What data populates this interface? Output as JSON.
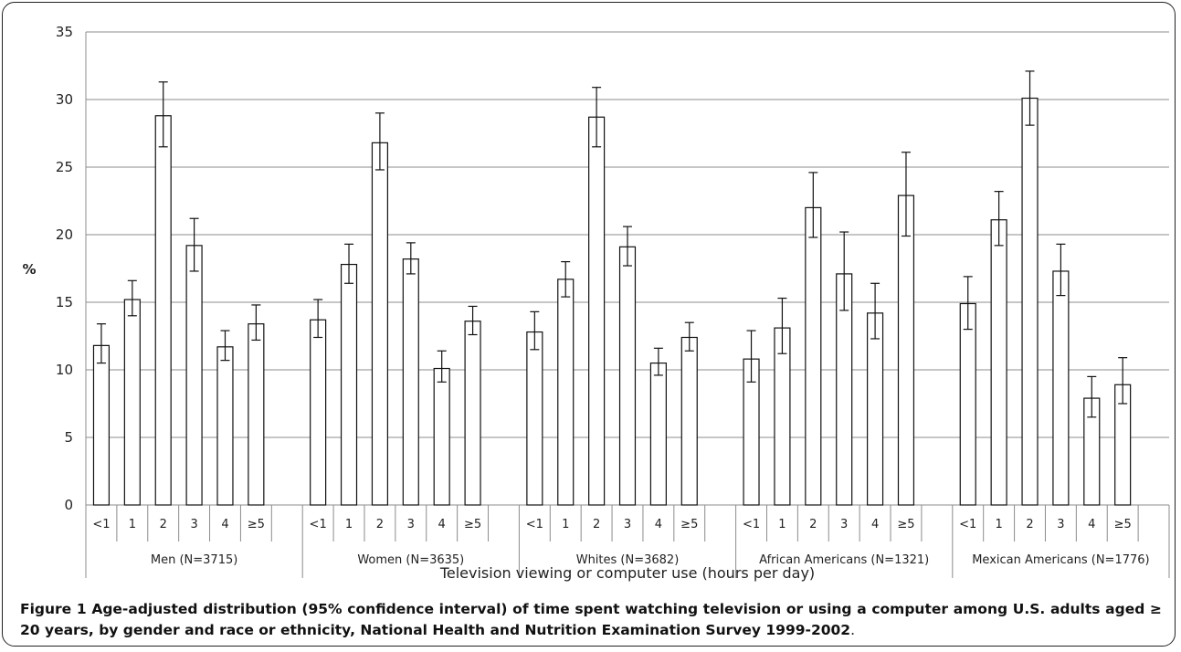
{
  "chart_data": {
    "type": "bar",
    "ylabel": "%",
    "xlabel": "Television viewing  or computer use (hours per day)",
    "ylim": [
      0,
      35
    ],
    "yticks": [
      0,
      5,
      10,
      15,
      20,
      25,
      30,
      35
    ],
    "grid": true,
    "groups": [
      {
        "label": "Men (N=3715)",
        "categories": [
          "<1",
          "1",
          "2",
          "3",
          "4",
          "≥5"
        ],
        "values": [
          11.8,
          15.2,
          28.8,
          19.2,
          11.7,
          13.4
        ],
        "lower": [
          10.5,
          14.0,
          26.5,
          17.3,
          10.7,
          12.2
        ],
        "upper": [
          13.4,
          16.6,
          31.3,
          21.2,
          12.9,
          14.8
        ]
      },
      {
        "label": "Women (N=3635)",
        "categories": [
          "<1",
          "1",
          "2",
          "3",
          "4",
          "≥5"
        ],
        "values": [
          13.7,
          17.8,
          26.8,
          18.2,
          10.1,
          13.6
        ],
        "lower": [
          12.4,
          16.4,
          24.8,
          17.1,
          9.1,
          12.6
        ],
        "upper": [
          15.2,
          19.3,
          29.0,
          19.4,
          11.4,
          14.7
        ]
      },
      {
        "label": "Whites (N=3682)",
        "categories": [
          "<1",
          "1",
          "2",
          "3",
          "4",
          "≥5"
        ],
        "values": [
          12.8,
          16.7,
          28.7,
          19.1,
          10.5,
          12.4
        ],
        "lower": [
          11.5,
          15.4,
          26.5,
          17.7,
          9.6,
          11.4
        ],
        "upper": [
          14.3,
          18.0,
          30.9,
          20.6,
          11.6,
          13.5
        ]
      },
      {
        "label": "African Americans    (N=1321)",
        "categories": [
          "<1",
          "1",
          "2",
          "3",
          "4",
          "≥5"
        ],
        "values": [
          10.8,
          13.1,
          22.0,
          17.1,
          14.2,
          22.9
        ],
        "lower": [
          9.1,
          11.2,
          19.8,
          14.4,
          12.3,
          19.9
        ],
        "upper": [
          12.9,
          15.3,
          24.6,
          20.2,
          16.4,
          26.1
        ]
      },
      {
        "label": "Mexican Americans (N=1776)",
        "categories": [
          "<1",
          "1",
          "2",
          "3",
          "4",
          "≥5"
        ],
        "values": [
          14.9,
          21.1,
          30.1,
          17.3,
          7.9,
          8.9
        ],
        "lower": [
          13.0,
          19.2,
          28.1,
          15.5,
          6.5,
          7.5
        ],
        "upper": [
          16.9,
          23.2,
          32.1,
          19.3,
          9.5,
          10.9
        ]
      }
    ]
  },
  "caption": {
    "figure_label": "Figure 1",
    "text": " Age-adjusted distribution (95% confidence interval) of time spent watching television or using a computer among U.S. adults aged ≥ 20 years, by gender and race or ethnicity, National Health and Nutrition Examination Survey 1999-2002",
    "end": "."
  }
}
